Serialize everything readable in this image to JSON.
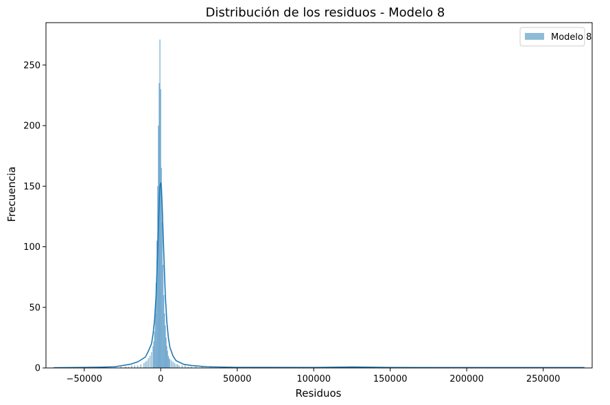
{
  "chart_data": {
    "type": "bar",
    "title": "Distribución de los residuos - Modelo 8",
    "xlabel": "Residuos",
    "ylabel": "Frecuencia",
    "xlim": [
      -75000,
      282000
    ],
    "ylim": [
      0,
      285
    ],
    "xticks": [
      -50000,
      0,
      50000,
      100000,
      150000,
      200000,
      250000
    ],
    "xtick_labels": [
      "−50000",
      "0",
      "50000",
      "100000",
      "150000",
      "200000",
      "250000"
    ],
    "yticks": [
      0,
      50,
      100,
      150,
      200,
      250
    ],
    "ytick_labels": [
      "0",
      "50",
      "100",
      "150",
      "200",
      "250"
    ],
    "legend": {
      "position": "top-right",
      "entries": [
        "Modelo 8"
      ]
    },
    "colors": {
      "bars": "#1f77b4",
      "bar_alpha": 0.5,
      "kde": "#1f77b4"
    },
    "series": [
      {
        "name": "Modelo 8",
        "bin_centers": [
          -35000,
          -30000,
          -26000,
          -23000,
          -21000,
          -19000,
          -17000,
          -15000,
          -13000,
          -11000,
          -10000,
          -9000,
          -8000,
          -7000,
          -6000,
          -5000,
          -4500,
          -4000,
          -3500,
          -3000,
          -2500,
          -2000,
          -1500,
          -1000,
          -500,
          0,
          500,
          1000,
          1500,
          2000,
          2500,
          3000,
          3500,
          4000,
          4500,
          5000,
          5500,
          6000,
          7000,
          8000,
          9000,
          10000,
          11000,
          12000,
          14000,
          16000,
          18000,
          20000,
          23000,
          27000,
          33000,
          42000,
          46000,
          125000
        ],
        "values": [
          1,
          1,
          1,
          1,
          1,
          2,
          2,
          2,
          3,
          4,
          5,
          6,
          8,
          10,
          13,
          18,
          22,
          30,
          45,
          70,
          105,
          150,
          200,
          235,
          271,
          230,
          165,
          120,
          85,
          60,
          45,
          35,
          25,
          18,
          14,
          10,
          8,
          7,
          6,
          5,
          4,
          3,
          3,
          2,
          2,
          2,
          1,
          1,
          1,
          1,
          1,
          1,
          1,
          1
        ]
      },
      {
        "name": "kde",
        "x": [
          -70000,
          -40000,
          -30000,
          -20000,
          -15000,
          -10000,
          -8000,
          -6000,
          -5000,
          -4000,
          -3000,
          -2000,
          -1000,
          -500,
          0,
          500,
          1000,
          2000,
          3000,
          4000,
          5000,
          6000,
          8000,
          10000,
          15000,
          20000,
          30000,
          50000,
          100000,
          125000,
          150000,
          200000,
          250000,
          277000
        ],
        "y": [
          0.2,
          0.6,
          1,
          3,
          5,
          9,
          14,
          20,
          28,
          40,
          60,
          95,
          138,
          150,
          153,
          148,
          132,
          95,
          60,
          38,
          25,
          17,
          10,
          6,
          3,
          2,
          1,
          0.5,
          0.4,
          0.8,
          0.4,
          0.3,
          0.3,
          0.3
        ]
      }
    ]
  }
}
